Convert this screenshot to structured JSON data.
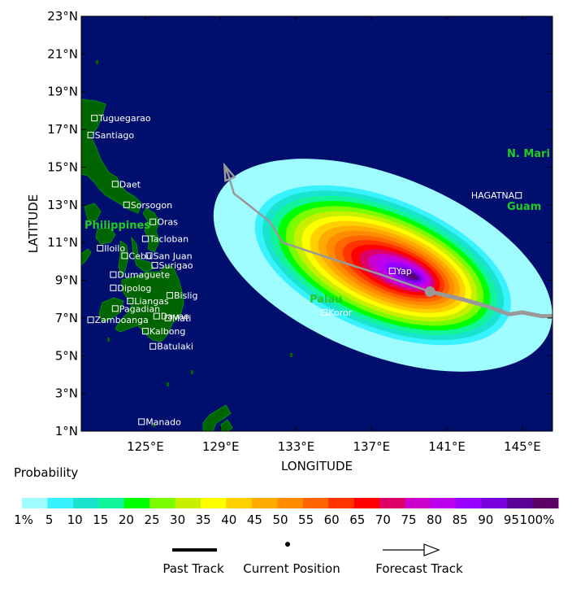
{
  "map": {
    "ylabel": "LATITUDE",
    "xlabel": "LONGITUDE",
    "lon_range": [
      121.6,
      146.6
    ],
    "lat_range": [
      1,
      23
    ],
    "lat_ticks": [
      "23°N",
      "21°N",
      "19°N",
      "17°N",
      "15°N",
      "13°N",
      "11°N",
      "9°N",
      "7°N",
      "5°N",
      "3°N",
      "1°N"
    ],
    "lat_tick_values": [
      23,
      21,
      19,
      17,
      15,
      13,
      11,
      9,
      7,
      5,
      3,
      1
    ],
    "lon_ticks": [
      "125°E",
      "129°E",
      "133°E",
      "137°E",
      "141°E",
      "145°E"
    ],
    "lon_tick_values": [
      125,
      129,
      133,
      137,
      141,
      145
    ],
    "ocean_color": "#000f6e",
    "land_color": "#006400"
  },
  "places": [
    {
      "name": "Tuguegarao",
      "lon": 122.3,
      "lat": 17.6
    },
    {
      "name": "Santiago",
      "lon": 122.1,
      "lat": 16.7
    },
    {
      "name": "Daet",
      "lon": 123.4,
      "lat": 14.1
    },
    {
      "name": "Sorsogon",
      "lon": 124.0,
      "lat": 13.0
    },
    {
      "name": "Oras",
      "lon": 125.4,
      "lat": 12.1
    },
    {
      "name": "Tacloban",
      "lon": 125.0,
      "lat": 11.2
    },
    {
      "name": "Iloilo",
      "lon": 122.6,
      "lat": 10.7
    },
    {
      "name": "Cebu",
      "lon": 123.9,
      "lat": 10.3
    },
    {
      "name": "San Juan",
      "lon": 125.2,
      "lat": 10.3
    },
    {
      "name": "Surigao",
      "lon": 125.5,
      "lat": 9.8
    },
    {
      "name": "Dumaguete",
      "lon": 123.3,
      "lat": 9.3
    },
    {
      "name": "Dipolog",
      "lon": 123.3,
      "lat": 8.6
    },
    {
      "name": "Bislig",
      "lon": 126.3,
      "lat": 8.2
    },
    {
      "name": "Liangas",
      "lon": 124.2,
      "lat": 7.9
    },
    {
      "name": "Pagadian",
      "lon": 123.4,
      "lat": 7.5
    },
    {
      "name": "Mati",
      "lon": 126.2,
      "lat": 7.0
    },
    {
      "name": "Davao",
      "lon": 125.6,
      "lat": 7.1
    },
    {
      "name": "Zamboanga",
      "lon": 122.1,
      "lat": 6.9
    },
    {
      "name": "Kalbong",
      "lon": 125.0,
      "lat": 6.3
    },
    {
      "name": "Batulaki",
      "lon": 125.4,
      "lat": 5.5
    },
    {
      "name": "Manado",
      "lon": 124.8,
      "lat": 1.5
    },
    {
      "name": "Yap",
      "lon": 138.1,
      "lat": 9.5
    },
    {
      "name": "Koror",
      "lon": 134.5,
      "lat": 7.3
    },
    {
      "name": "HAGATNA",
      "lon": 144.8,
      "lat": 13.5
    }
  ],
  "regions": {
    "philippines": "Philippines",
    "palau": "Palau",
    "guam": "Guam",
    "n_mari": "N. Mari"
  },
  "storm": {
    "current_position": {
      "lon": 140.1,
      "lat": 8.4
    },
    "past_track": [
      [
        140.1,
        8.4
      ],
      [
        141.8,
        8.0
      ],
      [
        143.2,
        7.6
      ],
      [
        144.3,
        7.2
      ],
      [
        145.0,
        7.3
      ],
      [
        146.0,
        7.1
      ],
      [
        146.6,
        7.1
      ]
    ],
    "forecast_track": [
      [
        140.1,
        8.4
      ],
      [
        137.5,
        9.3
      ],
      [
        135.0,
        10.1
      ],
      [
        132.3,
        11.0
      ],
      [
        131.6,
        12.1
      ],
      [
        130.6,
        12.9
      ],
      [
        129.7,
        13.6
      ],
      [
        129.4,
        14.6
      ],
      [
        129.2,
        15.1
      ]
    ],
    "track_color": "#999999"
  },
  "probability": {
    "center": {
      "lon": 137.6,
      "lat": 9.8
    },
    "peak_offset": {
      "lon": 1.6,
      "lat": -0.6
    },
    "semi_major_deg": 7.6,
    "semi_minor_deg": 2.8,
    "tilt_deg": 22,
    "fringe_extent": 1.25
  },
  "legend": {
    "title": "Probability",
    "labels": [
      "1%",
      "5",
      "10",
      "15",
      "20",
      "25",
      "30",
      "35",
      "40",
      "45",
      "50",
      "55",
      "60",
      "65",
      "70",
      "75",
      "80",
      "85",
      "90",
      "95",
      "100%"
    ],
    "colors": [
      "#9ffcff",
      "#39f2ff",
      "#19e3cc",
      "#10f59a",
      "#00ff00",
      "#7cfc00",
      "#c6f000",
      "#ffff00",
      "#ffd000",
      "#ffaa00",
      "#ff8c00",
      "#ff6600",
      "#ff3300",
      "#ff0000",
      "#dd0066",
      "#cc00cc",
      "#bb00ee",
      "#9900ff",
      "#7700dd",
      "#5a0099",
      "#5c0066"
    ],
    "past_track_label": "Past Track",
    "current_position_label": "Current Position",
    "forecast_track_label": "Forecast Track"
  }
}
